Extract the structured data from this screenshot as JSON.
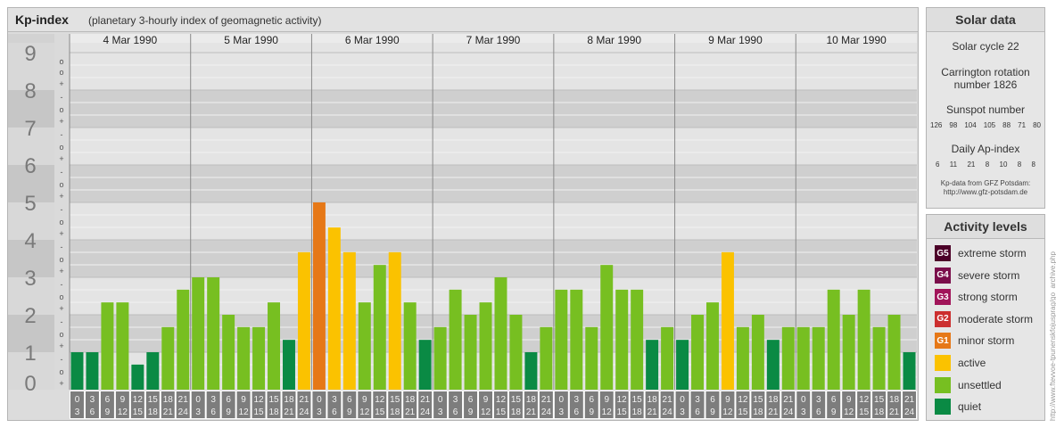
{
  "header": {
    "title": "Kp-index",
    "subtitle": "(planetary 3-hourly index of geomagnetic activity)"
  },
  "chart_data": {
    "type": "bar",
    "days": [
      "4 Mar 1990",
      "5 Mar 1990",
      "6 Mar 1990",
      "7 Mar 1990",
      "8 Mar 1990",
      "9 Mar 1990",
      "10 Mar 1990"
    ],
    "hour_start_labels": [
      "0",
      "3",
      "6",
      "9",
      "12",
      "15",
      "18",
      "21"
    ],
    "hour_end_labels": [
      "3",
      "6",
      "9",
      "12",
      "15",
      "18",
      "21",
      "24"
    ],
    "y_tick_labels": [
      "0",
      "1",
      "2",
      "3",
      "4",
      "5",
      "6",
      "7",
      "8",
      "9"
    ],
    "subdivision_labels": [
      "+",
      "o",
      "-"
    ],
    "top_subdivision_label": "o",
    "ylim": [
      0,
      9.33
    ],
    "values": [
      1.0,
      1.0,
      2.33,
      2.33,
      0.67,
      1.0,
      1.67,
      2.67,
      3.0,
      3.0,
      2.0,
      1.67,
      1.67,
      2.33,
      1.33,
      3.67,
      5.0,
      4.33,
      3.67,
      2.33,
      3.33,
      3.67,
      2.33,
      1.33,
      1.67,
      2.67,
      2.0,
      2.33,
      3.0,
      2.0,
      1.0,
      1.67,
      2.67,
      2.67,
      1.67,
      3.33,
      2.67,
      2.67,
      1.33,
      1.67,
      1.33,
      2.0,
      2.33,
      3.67,
      1.67,
      2.0,
      1.33,
      1.67,
      1.67,
      1.67,
      2.67,
      2.0,
      2.67,
      1.67,
      2.0,
      1.0
    ],
    "level_colors": {
      "quiet": "#0a8a44",
      "unsettled": "#77bf21",
      "active": "#fbc200",
      "G1": "#e67817",
      "G2": "#cc2f2f",
      "G3": "#a1155a",
      "G4": "#7a0d4a",
      "G5": "#4c0028"
    }
  },
  "solar": {
    "title": "Solar data",
    "cycle": "Solar cycle 22",
    "carrington_1": "Carrington rotation",
    "carrington_2": "number 1826",
    "sunspot_label": "Sunspot number",
    "sunspot_values": [
      "126",
      "98",
      "104",
      "105",
      "88",
      "71",
      "80"
    ],
    "ap_label": "Daily Ap-index",
    "ap_values": [
      "6",
      "11",
      "21",
      "8",
      "10",
      "8",
      "8"
    ],
    "credit_1": "Kp-data from GFZ Potsdam:",
    "credit_2": "http://www.gfz-potsdam.de"
  },
  "activity": {
    "title": "Activity levels",
    "items": [
      {
        "code": "G5",
        "label": "extreme storm",
        "color": "#4c0028"
      },
      {
        "code": "G4",
        "label": "severe storm",
        "color": "#7a0d4a"
      },
      {
        "code": "G3",
        "label": "strong storm",
        "color": "#a1155a"
      },
      {
        "code": "G2",
        "label": "moderate storm",
        "color": "#cc2f2f"
      },
      {
        "code": "G1",
        "label": "minor storm",
        "color": "#e67817"
      },
      {
        "code": "",
        "label": "active",
        "color": "#fbc200"
      },
      {
        "code": "",
        "label": "unsettled",
        "color": "#77bf21"
      },
      {
        "code": "",
        "label": "quiet",
        "color": "#0a8a44"
      }
    ]
  },
  "watermark": "http://www.ftevvoe-tpunenskfojusprag/go_archive.php"
}
